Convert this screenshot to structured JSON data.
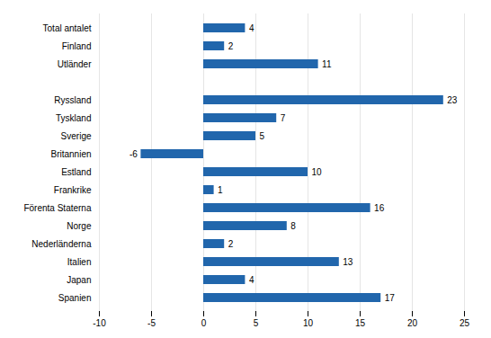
{
  "chart_data": {
    "type": "bar",
    "orientation": "horizontal",
    "categories": [
      "Spanien",
      "Japan",
      "Italien",
      "Nederländerna",
      "Norge",
      "Förenta Staterna",
      "Frankrike",
      "Estland",
      "Britannien",
      "Sverige",
      "Tyskland",
      "Ryssland",
      null,
      "Utländer",
      "Finland",
      "Total antalet"
    ],
    "values": [
      17,
      4,
      13,
      2,
      8,
      16,
      1,
      10,
      -6,
      5,
      7,
      23,
      0,
      11,
      2,
      4
    ],
    "color": "#2166ac",
    "xlim": [
      -10,
      25
    ],
    "xticks": [
      -10,
      -5,
      0,
      5,
      10,
      15,
      20,
      25
    ],
    "grid": true,
    "data_labels": true
  }
}
